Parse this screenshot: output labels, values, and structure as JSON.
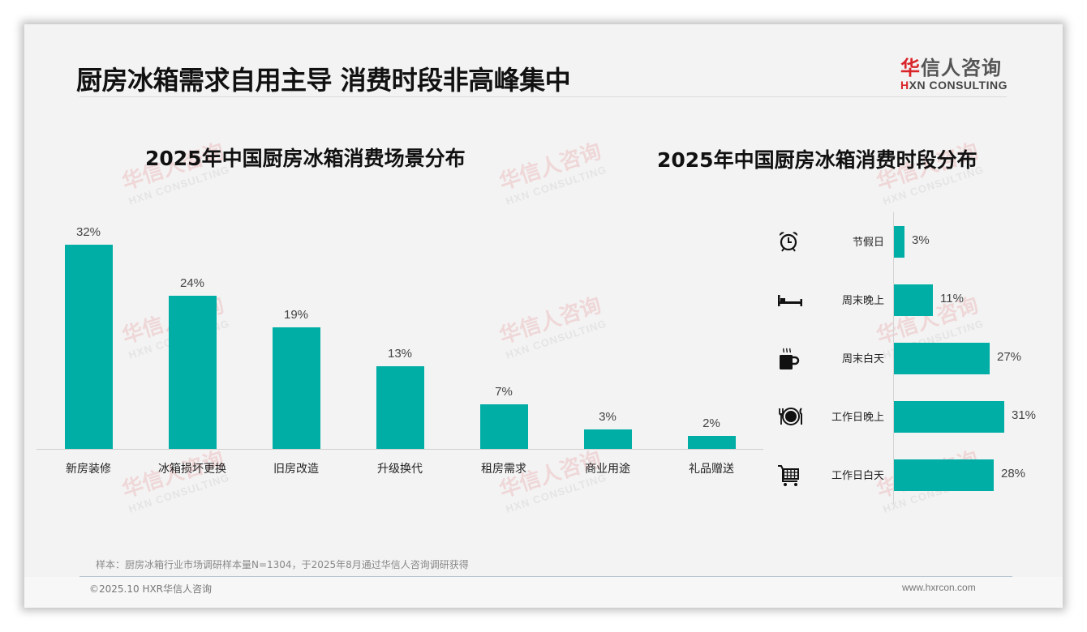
{
  "header": {
    "title": "厨房冰箱需求自用主导 消费时段非高峰集中",
    "logo": {
      "cn_red": "华",
      "cn_rest": "信人咨询",
      "en_red": "H",
      "en_rest": "XN CONSULTING"
    }
  },
  "watermark": {
    "cn": "华信人咨询",
    "en": "HXN CONSULTING"
  },
  "colors": {
    "bar": "#00aea5",
    "brand_red": "#d9252a",
    "slide_bg": "#f3f3f3"
  },
  "chart_data": [
    {
      "type": "bar",
      "orientation": "vertical",
      "title": "2025年中国厨房冰箱消费场景分布",
      "categories": [
        "新房装修",
        "冰箱损坏更换",
        "旧房改造",
        "升级换代",
        "租房需求",
        "商业用途",
        "礼品赠送"
      ],
      "values": [
        32,
        24,
        19,
        13,
        7,
        3,
        2
      ],
      "value_labels": [
        "32%",
        "24%",
        "19%",
        "13%",
        "7%",
        "3%",
        "2%"
      ],
      "unit": "%",
      "xlabel": "",
      "ylabel": "",
      "ylim": [
        0,
        32
      ],
      "grid": false,
      "legend": "none"
    },
    {
      "type": "bar",
      "orientation": "horizontal",
      "title": "2025年中国厨房冰箱消费时段分布",
      "categories": [
        "节假日",
        "周末晚上",
        "周末白天",
        "工作日晚上",
        "工作日白天"
      ],
      "values": [
        3,
        11,
        27,
        31,
        28
      ],
      "value_labels": [
        "3%",
        "11%",
        "27%",
        "31%",
        "28%"
      ],
      "icons": [
        "alarm-clock-icon",
        "bed-icon",
        "hot-coffee-mug-icon",
        "plate-fork-knife-icon",
        "shopping-cart-icon"
      ],
      "unit": "%",
      "xlim": [
        0,
        31
      ],
      "grid": false,
      "legend": "none"
    }
  ],
  "footer": {
    "sample_note": "样本：厨房冰箱行业市场调研样本量N=1304，于2025年8月通过华信人咨询调研获得",
    "copyright": "©2025.10 HXR华信人咨询",
    "website": "www.hxrcon.com"
  }
}
